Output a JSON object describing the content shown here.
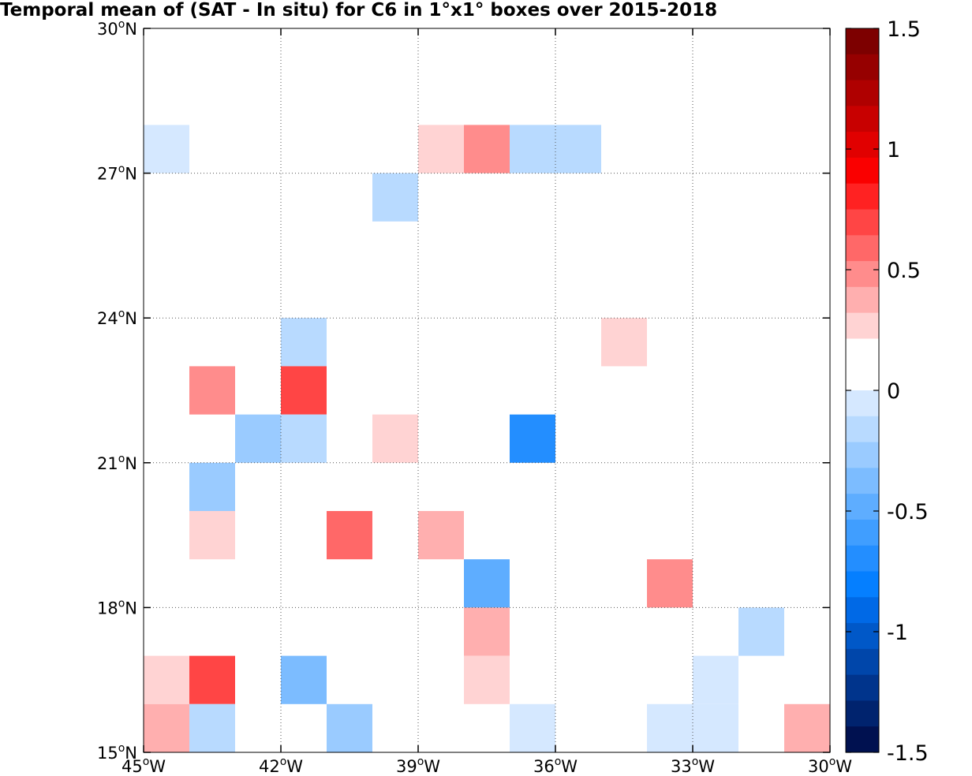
{
  "chart_data": {
    "type": "heatmap",
    "title": "Temporal mean of (SAT - In situ) for C6 in 1°x1° boxes over 2015-2018",
    "x_ticks": [
      {
        "value": -45,
        "deg": "45",
        "sup": "o",
        "hemi": "W"
      },
      {
        "value": -42,
        "deg": "42",
        "sup": "o",
        "hemi": "W"
      },
      {
        "value": -39,
        "deg": "39",
        "sup": "o",
        "hemi": "W"
      },
      {
        "value": -36,
        "deg": "36",
        "sup": "o",
        "hemi": "W"
      },
      {
        "value": -33,
        "deg": "33",
        "sup": "o",
        "hemi": "W"
      },
      {
        "value": -30,
        "deg": "30",
        "sup": "o",
        "hemi": "W"
      }
    ],
    "y_ticks": [
      {
        "value": 15,
        "deg": "15",
        "sup": "o",
        "hemi": "N"
      },
      {
        "value": 18,
        "deg": "18",
        "sup": "o",
        "hemi": "N"
      },
      {
        "value": 21,
        "deg": "21",
        "sup": "o",
        "hemi": "N"
      },
      {
        "value": 24,
        "deg": "24",
        "sup": "o",
        "hemi": "N"
      },
      {
        "value": 27,
        "deg": "27",
        "sup": "o",
        "hemi": "N"
      },
      {
        "value": 30,
        "deg": "30",
        "sup": "o",
        "hemi": "N"
      }
    ],
    "xlim": [
      -45,
      -30
    ],
    "ylim": [
      15,
      30
    ],
    "grid": true,
    "colorbar": {
      "range": [
        -1.5,
        1.5
      ],
      "ticks": [
        "1.5",
        "1",
        "0.5",
        "0",
        "-0.5",
        "-1",
        "-1.5"
      ],
      "tick_values": [
        1.5,
        1,
        0.5,
        0,
        -0.5,
        -1,
        -1.5
      ],
      "levels_top_to_bottom": [
        "#7d0000",
        "#960000",
        "#af0000",
        "#c80000",
        "#e10000",
        "#fa0000",
        "#ff2222",
        "#ff4545",
        "#ff6868",
        "#ff8c8c",
        "#ffafaf",
        "#ffd3d3",
        "#ffffff",
        "#ffffff",
        "#d5e8ff",
        "#b8daff",
        "#9acbff",
        "#7cbcff",
        "#5eadff",
        "#409eff",
        "#238eff",
        "#057fff",
        "#0069e6",
        "#0058c8",
        "#0046aa",
        "#00348c",
        "#00236e",
        "#001150"
      ]
    },
    "cells": [
      {
        "lon": -45,
        "lat": 27,
        "value": -0.1
      },
      {
        "lon": -39,
        "lat": 27,
        "value": 0.25
      },
      {
        "lon": -38,
        "lat": 27,
        "value": 0.45
      },
      {
        "lon": -37,
        "lat": 27,
        "value": -0.2
      },
      {
        "lon": -36,
        "lat": 27,
        "value": -0.2
      },
      {
        "lon": -40,
        "lat": 26,
        "value": -0.2
      },
      {
        "lon": -45,
        "lat": 23,
        "value": 0.15
      },
      {
        "lon": -42,
        "lat": 23,
        "value": -0.2
      },
      {
        "lon": -35,
        "lat": 23,
        "value": 0.25
      },
      {
        "lon": -44,
        "lat": 22,
        "value": 0.45
      },
      {
        "lon": -42,
        "lat": 22,
        "value": 0.7
      },
      {
        "lon": -43,
        "lat": 21,
        "value": -0.25
      },
      {
        "lon": -42,
        "lat": 21,
        "value": -0.2
      },
      {
        "lon": -40,
        "lat": 21,
        "value": 0.25
      },
      {
        "lon": -37,
        "lat": 21,
        "value": -0.65
      },
      {
        "lon": -44,
        "lat": 20,
        "value": -0.3
      },
      {
        "lon": -44,
        "lat": 19,
        "value": 0.25
      },
      {
        "lon": -41,
        "lat": 19,
        "value": 0.55
      },
      {
        "lon": -39,
        "lat": 19,
        "value": 0.35
      },
      {
        "lon": -31,
        "lat": 19,
        "value": 0.15
      },
      {
        "lon": -38,
        "lat": 18,
        "value": -0.45
      },
      {
        "lon": -34,
        "lat": 18,
        "value": 0.45
      },
      {
        "lon": -38,
        "lat": 17,
        "value": 0.35
      },
      {
        "lon": -32,
        "lat": 17,
        "value": -0.2
      },
      {
        "lon": -45,
        "lat": 16,
        "value": 0.25
      },
      {
        "lon": -44,
        "lat": 16,
        "value": 0.7
      },
      {
        "lon": -42,
        "lat": 16,
        "value": -0.4
      },
      {
        "lon": -38,
        "lat": 16,
        "value": 0.25
      },
      {
        "lon": -37,
        "lat": 16,
        "value": 0.15
      },
      {
        "lon": -33,
        "lat": 16,
        "value": -0.1
      },
      {
        "lon": -45,
        "lat": 15,
        "value": 0.35
      },
      {
        "lon": -44,
        "lat": 15,
        "value": -0.2
      },
      {
        "lon": -41,
        "lat": 15,
        "value": -0.3
      },
      {
        "lon": -37,
        "lat": 15,
        "value": -0.1
      },
      {
        "lon": -34,
        "lat": 15,
        "value": -0.1
      },
      {
        "lon": -33,
        "lat": 15,
        "value": -0.1
      },
      {
        "lon": -31,
        "lat": 15,
        "value": 0.35
      }
    ]
  }
}
